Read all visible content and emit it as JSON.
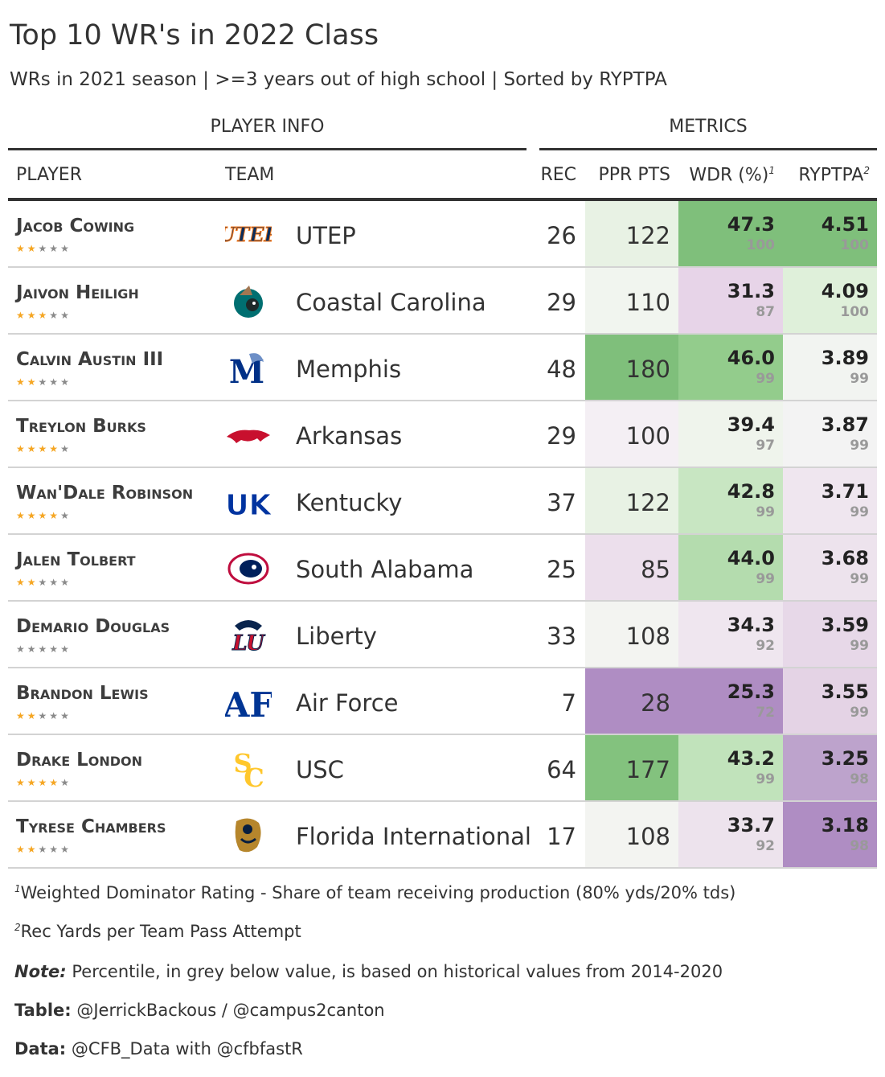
{
  "title": "Top 10 WR's in 2022 Class",
  "subtitle": "WRs in 2021 season | >=3 years out of high school | Sorted by RYPTPA",
  "spanners": {
    "player_info": "PLAYER INFO",
    "metrics": "METRICS"
  },
  "columns": {
    "player": "PLAYER",
    "team": "TEAM",
    "rec": "REC",
    "ppr": "PPR PTS",
    "wdr": "WDR (%)",
    "wdr_note": "1",
    "ryptpa": "RYPTPA",
    "ryptpa_note": "2"
  },
  "colors": {
    "purple_dark": "#af8dc3",
    "purple_mid": "#cdb6d9",
    "purple_light": "#e7d4e8",
    "purple_faint": "#f1e9f2",
    "neutral": "#f3f3f3",
    "green_faint": "#e7f1e3",
    "green_light": "#d4ebd0",
    "green_mid": "#a6dba0",
    "green_dark": "#7fbf7b",
    "star_on": "#f5a623",
    "star_off": "#8a8a8a"
  },
  "chart_data": {
    "type": "table",
    "rows": [
      {
        "player": "Jacob Cowing",
        "stars": 2,
        "logo": "utep-logo",
        "team": "UTEP",
        "rec": "26",
        "ppr": "122",
        "ppr_color": "#e8f2e4",
        "wdr": "47.3",
        "wdr_pct": "100",
        "wdr_color": "#7fbf7b",
        "ryptpa": "4.51",
        "ryptpa_pct": "100",
        "ryptpa_color": "#7fbf7b"
      },
      {
        "player": "Jaivon Heiligh",
        "stars": 3,
        "logo": "coastal-carolina-logo",
        "team": "Coastal Carolina",
        "rec": "29",
        "ppr": "110",
        "ppr_color": "#f1f5ef",
        "wdr": "31.3",
        "wdr_pct": "87",
        "wdr_color": "#e7d4e8",
        "ryptpa": "4.09",
        "ryptpa_pct": "100",
        "ryptpa_color": "#dff0da"
      },
      {
        "player": "Calvin Austin III",
        "stars": 2,
        "logo": "memphis-logo",
        "team": "Memphis",
        "rec": "48",
        "ppr": "180",
        "ppr_color": "#7fbf7b",
        "wdr": "46.0",
        "wdr_pct": "99",
        "wdr_color": "#93cc8c",
        "ryptpa": "3.89",
        "ryptpa_pct": "99",
        "ryptpa_color": "#f2f4f1"
      },
      {
        "player": "Treylon Burks",
        "stars": 4,
        "logo": "arkansas-logo",
        "team": "Arkansas",
        "rec": "29",
        "ppr": "100",
        "ppr_color": "#f4eff4",
        "wdr": "39.4",
        "wdr_pct": "97",
        "wdr_color": "#eff4ec",
        "ryptpa": "3.87",
        "ryptpa_pct": "99",
        "ryptpa_color": "#f3f3f3"
      },
      {
        "player": "Wan'Dale Robinson",
        "stars": 4,
        "logo": "kentucky-logo",
        "team": "Kentucky",
        "rec": "37",
        "ppr": "122",
        "ppr_color": "#e8f2e4",
        "wdr": "42.8",
        "wdr_pct": "99",
        "wdr_color": "#c8e6c2",
        "ryptpa": "3.71",
        "ryptpa_pct": "99",
        "ryptpa_color": "#efe6ef"
      },
      {
        "player": "Jalen Tolbert",
        "stars": 2,
        "logo": "south-alabama-logo",
        "team": "South Alabama",
        "rec": "25",
        "ppr": "85",
        "ppr_color": "#ecdfec",
        "wdr": "44.0",
        "wdr_pct": "99",
        "wdr_color": "#b4dcae",
        "ryptpa": "3.68",
        "ryptpa_pct": "99",
        "ryptpa_color": "#ede3ed"
      },
      {
        "player": "Demario Douglas",
        "stars": 0,
        "logo": "liberty-logo",
        "team": "Liberty",
        "rec": "33",
        "ppr": "108",
        "ppr_color": "#f3f4f1",
        "wdr": "34.3",
        "wdr_pct": "92",
        "wdr_color": "#efe6ef",
        "ryptpa": "3.59",
        "ryptpa_pct": "99",
        "ryptpa_color": "#e7d8e8"
      },
      {
        "player": "Brandon Lewis",
        "stars": 2,
        "logo": "air-force-logo",
        "team": "Air Force",
        "rec": "7",
        "ppr": "28",
        "ppr_color": "#af8dc3",
        "wdr": "25.3",
        "wdr_pct": "72",
        "wdr_color": "#af8dc3",
        "ryptpa": "3.55",
        "ryptpa_pct": "99",
        "ryptpa_color": "#e4d3e5"
      },
      {
        "player": "Drake London",
        "stars": 4,
        "logo": "usc-logo",
        "team": "USC",
        "rec": "64",
        "ppr": "177",
        "ppr_color": "#83c27e",
        "wdr": "43.2",
        "wdr_pct": "99",
        "wdr_color": "#c1e3bb",
        "ryptpa": "3.25",
        "ryptpa_pct": "98",
        "ryptpa_color": "#bda3cc"
      },
      {
        "player": "Tyrese Chambers",
        "stars": 2,
        "logo": "fiu-logo",
        "team": "Florida International",
        "rec": "17",
        "ppr": "108",
        "ppr_color": "#f3f4f1",
        "wdr": "33.7",
        "wdr_pct": "92",
        "wdr_color": "#ede3ed",
        "ryptpa": "3.18",
        "ryptpa_pct": "98",
        "ryptpa_color": "#af8dc3"
      }
    ]
  },
  "footnotes": {
    "f1_mark": "1",
    "f1": "Weighted Dominator Rating - Share of team receiving production (80% yds/20% tds)",
    "f2_mark": "2",
    "f2": "Rec Yards per Team Pass Attempt",
    "note_label": "Note:",
    "note": "Percentile, in grey below value, is based on historical values from 2014-2020",
    "table_label": "Table:",
    "table": "@JerrickBackous / @campus2canton",
    "data_label": "Data:",
    "data": "@CFB_Data with @cfbfastR"
  }
}
